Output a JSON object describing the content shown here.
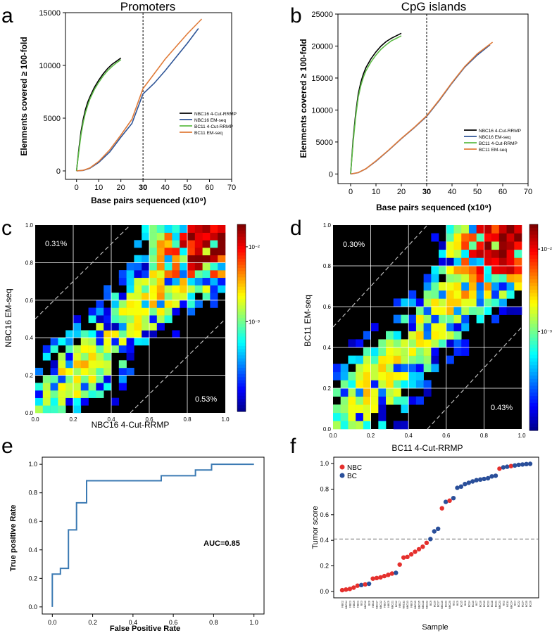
{
  "panel_letters": {
    "a": "a",
    "b": "b",
    "c": "c",
    "d": "d",
    "e": "e",
    "f": "f"
  },
  "colors": {
    "black": "#000000",
    "blue": "#2f5597",
    "green": "#5dbb46",
    "orange": "#e07b39",
    "roc": "#3b7ab3",
    "nbc": "#e5302d",
    "bc": "#2a4f9a",
    "threshold": "#666666"
  },
  "chart_data": [
    {
      "id": "a",
      "type": "line",
      "title": "Promoters",
      "xlabel": "Base pairs sequenced (x10⁹)",
      "ylabel": "Elenments covered ≥ 100-fold",
      "xlim": [
        -5,
        70
      ],
      "ylim": [
        -800,
        15000
      ],
      "xticks": [
        "0",
        "10",
        "20",
        "30",
        "40",
        "50",
        "60",
        "70"
      ],
      "yticks": [
        "0",
        "5000",
        "10000",
        "15000"
      ],
      "vline": 30,
      "legend_position": "center-right",
      "series": [
        {
          "name": "NBC16 4-Cut-RRMP",
          "color": "black",
          "x": [
            0,
            1,
            2,
            3,
            4,
            5,
            6,
            8,
            10,
            12,
            14,
            16,
            18,
            20
          ],
          "y": [
            0,
            2000,
            3700,
            4900,
            5800,
            6500,
            7000,
            7900,
            8600,
            9200,
            9700,
            10100,
            10400,
            10700
          ]
        },
        {
          "name": "NBC16 EM-seq",
          "color": "blue",
          "x": [
            0,
            3,
            6,
            10,
            15,
            20,
            25,
            30,
            35,
            40,
            45,
            50,
            55
          ],
          "y": [
            0,
            50,
            250,
            800,
            1800,
            3200,
            4500,
            7300,
            8300,
            9500,
            10800,
            12100,
            13500
          ]
        },
        {
          "name": "BC11 4-Cut-RRMP",
          "color": "green",
          "x": [
            0,
            1,
            2,
            3,
            4,
            5,
            6,
            8,
            10,
            12,
            14,
            16,
            18,
            20
          ],
          "y": [
            0,
            1800,
            3400,
            4600,
            5500,
            6200,
            6800,
            7700,
            8400,
            9000,
            9500,
            9900,
            10250,
            10550
          ]
        },
        {
          "name": "BC11 EM-seq",
          "color": "orange",
          "x": [
            0,
            3,
            6,
            10,
            15,
            20,
            25,
            30,
            35,
            40,
            45,
            50,
            56.5
          ],
          "y": [
            0,
            60,
            280,
            900,
            2000,
            3400,
            4900,
            7800,
            9200,
            10600,
            11800,
            13000,
            14400
          ]
        }
      ]
    },
    {
      "id": "b",
      "type": "line",
      "title": "CpG islands",
      "xlabel": "Base pairs sequenced (x10⁹)",
      "ylabel": "Elenments covered ≥ 100-fold",
      "xlim": [
        -5,
        70
      ],
      "ylim": [
        -1500,
        25000
      ],
      "xticks": [
        "0",
        "10",
        "20",
        "30",
        "40",
        "50",
        "60",
        "70"
      ],
      "yticks": [
        "0",
        "5000",
        "10000",
        "15000",
        "20000",
        "25000"
      ],
      "vline": 30,
      "legend_position": "center-right",
      "series": [
        {
          "name": "NBC16 4-Cut-RRMP",
          "color": "black",
          "x": [
            0,
            1,
            2,
            3,
            4,
            5,
            6,
            8,
            10,
            12,
            14,
            16,
            18,
            20
          ],
          "y": [
            0,
            5500,
            9500,
            12500,
            14300,
            15600,
            16600,
            18000,
            19100,
            20000,
            20700,
            21200,
            21600,
            22000
          ]
        },
        {
          "name": "NBC16 EM-seq",
          "color": "blue",
          "x": [
            0,
            3,
            6,
            10,
            15,
            20,
            25,
            30,
            35,
            40,
            45,
            50,
            55
          ],
          "y": [
            0,
            200,
            800,
            2000,
            3700,
            5500,
            7200,
            9000,
            11500,
            14200,
            16700,
            18600,
            20200
          ]
        },
        {
          "name": "BC11 4-Cut-RRMP",
          "color": "green",
          "x": [
            0,
            1,
            2,
            3,
            4,
            5,
            6,
            8,
            10,
            12,
            14,
            16,
            18,
            20
          ],
          "y": [
            0,
            5000,
            9000,
            12000,
            13800,
            15100,
            16100,
            17500,
            18600,
            19500,
            20200,
            20800,
            21200,
            21600
          ]
        },
        {
          "name": "BC11 EM-seq",
          "color": "orange",
          "x": [
            0,
            3,
            6,
            10,
            15,
            20,
            25,
            30,
            35,
            40,
            45,
            50,
            56
          ],
          "y": [
            0,
            210,
            820,
            2050,
            3750,
            5550,
            7250,
            9100,
            11600,
            14300,
            16800,
            18800,
            20600
          ]
        }
      ]
    },
    {
      "id": "c",
      "type": "heatmap",
      "xlabel": "NBC16 4-Cut-RRMP",
      "ylabel": "NBC16 EM-seq",
      "xlim": [
        0,
        1
      ],
      "ylim": [
        0,
        1
      ],
      "xticks": [
        "0.0",
        "0.2",
        "0.4",
        "0.6",
        "0.8",
        "1.0"
      ],
      "yticks": [
        "0.0",
        "0.2",
        "0.4",
        "0.6",
        "0.8",
        "1.0"
      ],
      "colorbar_label_top": "10⁻²",
      "colorbar_label_bottom": "10⁻³",
      "colorbar_top_value": 0.01,
      "colorbar_bottom_value": 0.001,
      "bins": 25,
      "annotation_top_left": "0.31%",
      "annotation_bottom_right": "0.53%",
      "diagonal_offset": 0.5
    },
    {
      "id": "d",
      "type": "heatmap",
      "xlabel": "BC11 4-Cut-RRMP",
      "ylabel": "BC11 EM-seq",
      "xlim": [
        0,
        1
      ],
      "ylim": [
        0,
        1
      ],
      "xticks": [
        "0.0",
        "0.2",
        "0.4",
        "0.6",
        "0.8",
        "1.0"
      ],
      "yticks": [
        "0.0",
        "0.2",
        "0.4",
        "0.6",
        "0.8",
        "1.0"
      ],
      "colorbar_label_top": "10⁻²",
      "colorbar_label_bottom": "10⁻³",
      "colorbar_top_value": 0.01,
      "colorbar_bottom_value": 0.001,
      "bins": 25,
      "annotation_top_left": "0.30%",
      "annotation_bottom_right": "0.43%",
      "diagonal_offset": 0.5
    },
    {
      "id": "e",
      "type": "line",
      "xlabel": "False Positive Rate",
      "ylabel": "True positive Rate",
      "xlim": [
        -0.05,
        1.05
      ],
      "ylim": [
        -0.05,
        1.05
      ],
      "xticks": [
        "0.0",
        "0.2",
        "0.4",
        "0.6",
        "0.8",
        "1.0"
      ],
      "yticks": [
        "0.0",
        "0.2",
        "0.4",
        "0.6",
        "0.8",
        "1.0"
      ],
      "annotation": "AUC=0.85",
      "roc": {
        "fpr": [
          0,
          0,
          0.04,
          0.04,
          0.08,
          0.08,
          0.12,
          0.12,
          0.17,
          0.17,
          0.54,
          0.54,
          0.71,
          0.71,
          0.79,
          0.79,
          1.0
        ],
        "tpr": [
          0,
          0.23,
          0.23,
          0.27,
          0.27,
          0.54,
          0.54,
          0.73,
          0.73,
          0.885,
          0.885,
          0.92,
          0.92,
          0.96,
          0.96,
          1.0,
          1.0
        ]
      }
    },
    {
      "id": "f",
      "type": "scatter",
      "xlabel": "Sample",
      "ylabel": "Tumor score",
      "ylim": [
        -0.05,
        1.05
      ],
      "yticks": [
        "0.0",
        "0.2",
        "0.4",
        "0.6",
        "0.8",
        "1.0"
      ],
      "threshold": 0.41,
      "legend": [
        {
          "label": "NBC",
          "color": "nbc"
        },
        {
          "label": "BC",
          "color": "bc"
        }
      ],
      "legend_position": "top-left",
      "samples": [
        "NBC2",
        "NBC14",
        "NBC3",
        "NBC9",
        "NBC1",
        "BC3",
        "NBC10",
        "BC6",
        "NBC8",
        "NBC17",
        "NBC12",
        "NBC4",
        "NBC5",
        "NBC21",
        "BC12",
        "NBC7",
        "NBC11",
        "NBC13",
        "NBC6",
        "NBC19",
        "NBC15",
        "NBC18",
        "NBC22",
        "BC9",
        "BC20",
        "BC17",
        "NBC16",
        "BC23",
        "NBC20",
        "BC1",
        "BC5",
        "BC15",
        "BC8",
        "BC14",
        "BC10",
        "BC7",
        "BC16",
        "BC19",
        "BC13",
        "BC18",
        "BC21",
        "NBC23",
        "BC2",
        "BC11",
        "NBC24",
        "BC4",
        "BC22",
        "BC24",
        "BC25",
        "BC26"
      ],
      "groups": [
        "NBC",
        "NBC",
        "NBC",
        "NBC",
        "NBC",
        "BC",
        "NBC",
        "BC",
        "NBC",
        "NBC",
        "NBC",
        "NBC",
        "NBC",
        "NBC",
        "BC",
        "NBC",
        "NBC",
        "NBC",
        "NBC",
        "NBC",
        "NBC",
        "NBC",
        "NBC",
        "BC",
        "BC",
        "BC",
        "NBC",
        "BC",
        "NBC",
        "BC",
        "BC",
        "BC",
        "BC",
        "BC",
        "BC",
        "BC",
        "BC",
        "BC",
        "BC",
        "BC",
        "BC",
        "NBC",
        "BC",
        "BC",
        "NBC",
        "BC",
        "BC",
        "BC",
        "BC",
        "BC"
      ],
      "scores": [
        0.01,
        0.015,
        0.02,
        0.03,
        0.045,
        0.05,
        0.055,
        0.06,
        0.1,
        0.105,
        0.11,
        0.12,
        0.13,
        0.14,
        0.145,
        0.21,
        0.265,
        0.27,
        0.29,
        0.31,
        0.33,
        0.35,
        0.38,
        0.41,
        0.47,
        0.49,
        0.65,
        0.7,
        0.71,
        0.73,
        0.81,
        0.82,
        0.84,
        0.85,
        0.86,
        0.87,
        0.875,
        0.88,
        0.885,
        0.9,
        0.905,
        0.96,
        0.97,
        0.975,
        0.98,
        0.985,
        0.99,
        0.993,
        0.996,
        0.998
      ]
    }
  ]
}
